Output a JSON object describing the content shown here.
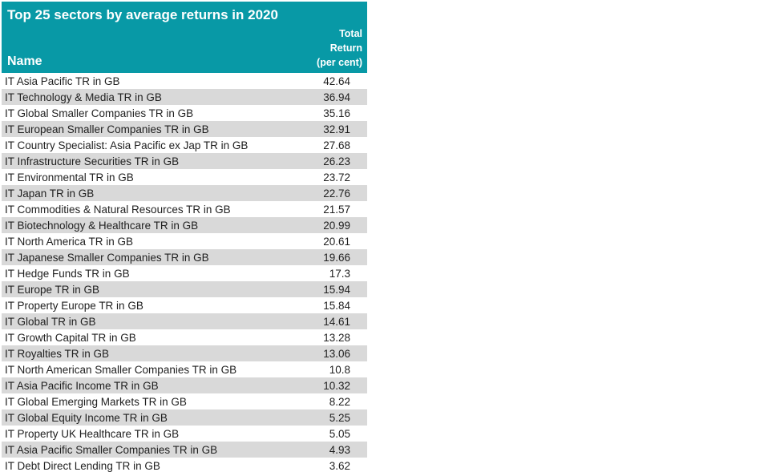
{
  "header": {
    "title": "Top 25 sectors by average returns in 2020",
    "name_column_label": "Name",
    "value_column_lines": [
      "Total",
      "Return",
      "(per cent)"
    ]
  },
  "colors": {
    "header_bg": "#0899A6",
    "header_text": "#FFFFFF",
    "row_bg": "#FFFFFF",
    "alt_row_bg": "#D9D9D9",
    "body_text": "#1F1F1F"
  },
  "chart_data": {
    "type": "table",
    "title": "Top 25 sectors by average returns in 2020",
    "columns": [
      "Name",
      "Total Return (per cent)"
    ],
    "rows": [
      [
        "IT Asia Pacific TR in GB",
        42.64
      ],
      [
        "IT Technology & Media TR in GB",
        36.94
      ],
      [
        "IT Global Smaller Companies TR in GB",
        35.16
      ],
      [
        "IT European Smaller Companies TR in GB",
        32.91
      ],
      [
        "IT Country Specialist: Asia Pacific ex Jap TR in GB",
        27.68
      ],
      [
        "IT Infrastructure Securities TR in GB",
        26.23
      ],
      [
        "IT Environmental TR in GB",
        23.72
      ],
      [
        "IT Japan TR in GB",
        22.76
      ],
      [
        "IT Commodities & Natural Resources TR in GB",
        21.57
      ],
      [
        "IT Biotechnology & Healthcare TR in GB",
        20.99
      ],
      [
        "IT North America TR in GB",
        20.61
      ],
      [
        "IT Japanese Smaller Companies TR in GB",
        19.66
      ],
      [
        "IT Hedge Funds TR in GB",
        17.3
      ],
      [
        "IT Europe TR in GB",
        15.94
      ],
      [
        "IT Property Europe TR in GB",
        15.84
      ],
      [
        "IT Global TR in GB",
        14.61
      ],
      [
        "IT Growth Capital TR in GB",
        13.28
      ],
      [
        "IT Royalties TR in GB",
        13.06
      ],
      [
        "IT North American Smaller Companies TR in GB",
        10.8
      ],
      [
        "IT Asia Pacific Income TR in GB",
        10.32
      ],
      [
        "IT Global Emerging Markets TR in GB",
        8.22
      ],
      [
        "IT Global Equity Income TR in GB",
        5.25
      ],
      [
        "IT Property UK Healthcare TR in GB",
        5.05
      ],
      [
        "IT Asia Pacific Smaller Companies TR in GB",
        4.93
      ],
      [
        "IT Debt Direct Lending TR in GB",
        3.62
      ]
    ]
  }
}
